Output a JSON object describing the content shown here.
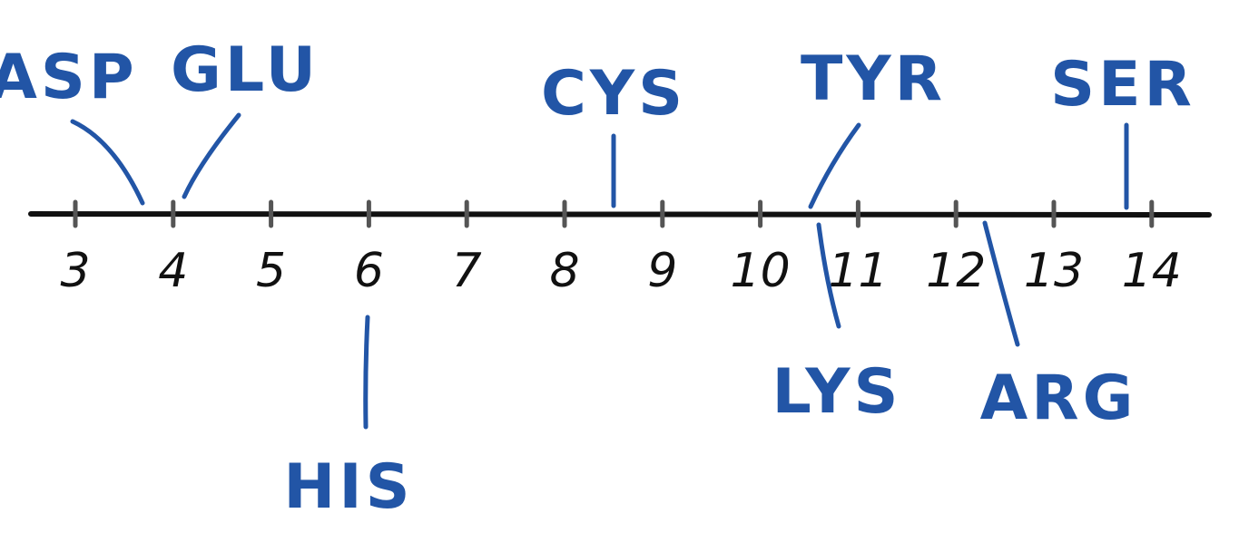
{
  "colors": {
    "axis": "#111111",
    "tick": "#555555",
    "label_ink": "#2255a6"
  },
  "number_line": {
    "ticks": [
      "3",
      "4",
      "5",
      "6",
      "7",
      "8",
      "9",
      "10",
      "11",
      "12",
      "13",
      "14"
    ]
  },
  "residues": [
    {
      "name": "ASP",
      "value": 3.7,
      "side": "above"
    },
    {
      "name": "GLU",
      "value": 4.1,
      "side": "above"
    },
    {
      "name": "HIS",
      "value": 6.0,
      "side": "below"
    },
    {
      "name": "CYS",
      "value": 8.3,
      "side": "above"
    },
    {
      "name": "TYR",
      "value": 10.5,
      "side": "above"
    },
    {
      "name": "LYS",
      "value": 10.5,
      "side": "below"
    },
    {
      "name": "ARG",
      "value": 12.3,
      "side": "below"
    },
    {
      "name": "SER",
      "value": 13.7,
      "side": "above"
    }
  ]
}
